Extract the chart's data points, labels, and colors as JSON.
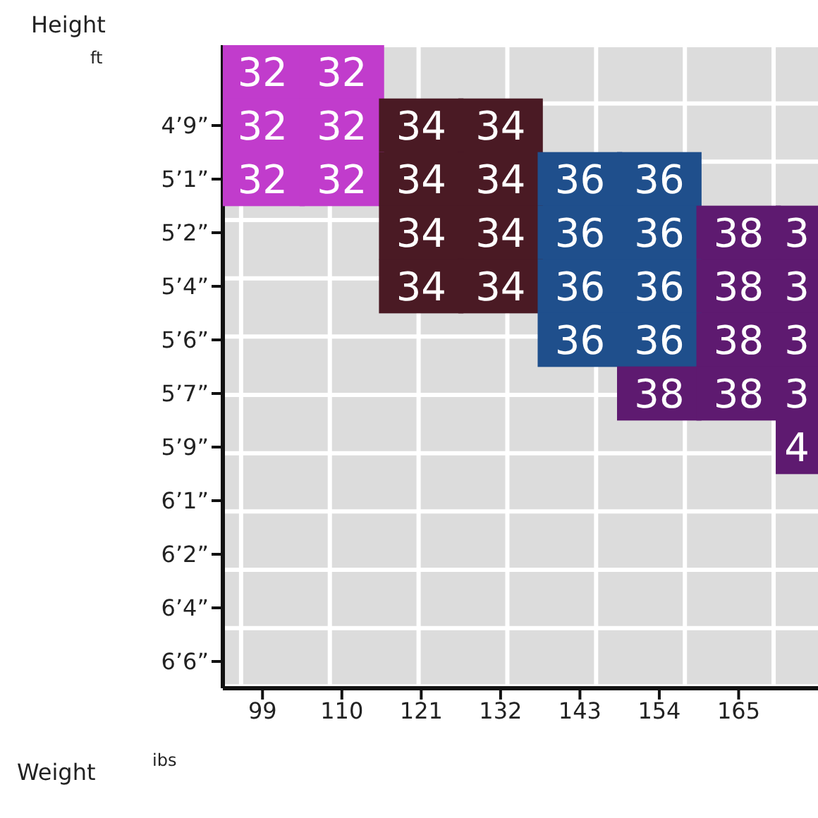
{
  "chart_data": {
    "type": "heatmap",
    "xlabel": "Weight",
    "ylabel": "Height",
    "annotations": [
      "ft",
      "ibs"
    ],
    "categories": [
      "99",
      "110",
      "121",
      "132",
      "143",
      "154",
      "165",
      null
    ],
    "y_categories": [
      null,
      "4’9”",
      "5’1”",
      "5’2”",
      "5’4”",
      "5’6”",
      "5’7”",
      "5’9”",
      "6’1”",
      "6’2”",
      "6’4”",
      "6’6”"
    ],
    "grid": true,
    "cells": [
      [
        32,
        32,
        null,
        null,
        null,
        null,
        null,
        null
      ],
      [
        32,
        32,
        34,
        34,
        null,
        null,
        null,
        null
      ],
      [
        32,
        32,
        34,
        34,
        36,
        36,
        null,
        null
      ],
      [
        null,
        null,
        34,
        34,
        36,
        36,
        38,
        3
      ],
      [
        null,
        null,
        34,
        34,
        36,
        36,
        38,
        3
      ],
      [
        null,
        null,
        null,
        null,
        36,
        36,
        38,
        3
      ],
      [
        null,
        null,
        null,
        null,
        null,
        38,
        38,
        3
      ],
      [
        null,
        null,
        null,
        null,
        null,
        null,
        null,
        4
      ],
      [
        null,
        null,
        null,
        null,
        null,
        null,
        null,
        null
      ],
      [
        null,
        null,
        null,
        null,
        null,
        null,
        null,
        null
      ],
      [
        null,
        null,
        null,
        null,
        null,
        null,
        null,
        null
      ],
      [
        null,
        null,
        null,
        null,
        null,
        null,
        null,
        null
      ]
    ],
    "colors": [
      [
        "#c13ccc",
        "#c13ccc",
        null,
        null,
        null,
        null,
        null,
        null
      ],
      [
        "#c13ccc",
        "#c13ccc",
        "#4a1a24",
        "#4a1a24",
        null,
        null,
        null,
        null
      ],
      [
        "#c13ccc",
        "#c13ccc",
        "#4a1a24",
        "#4a1a24",
        "#1f4f8c",
        "#1f4f8c",
        null,
        null
      ],
      [
        null,
        null,
        "#4a1a24",
        "#4a1a24",
        "#1f4f8c",
        "#1f4f8c",
        "#5e1a70",
        "#5e1a70"
      ],
      [
        null,
        null,
        "#4a1a24",
        "#4a1a24",
        "#1f4f8c",
        "#1f4f8c",
        "#5e1a70",
        "#5e1a70"
      ],
      [
        null,
        null,
        null,
        null,
        "#1f4f8c",
        "#1f4f8c",
        "#5e1a70",
        "#5e1a70"
      ],
      [
        null,
        null,
        null,
        null,
        null,
        "#5e1a70",
        "#5e1a70",
        "#5e1a70"
      ],
      [
        null,
        null,
        null,
        null,
        null,
        null,
        null,
        "#5e1a70"
      ],
      [
        null,
        null,
        null,
        null,
        null,
        null,
        null,
        null
      ],
      [
        null,
        null,
        null,
        null,
        null,
        null,
        null,
        null
      ],
      [
        null,
        null,
        null,
        null,
        null,
        null,
        null,
        null
      ],
      [
        null,
        null,
        null,
        null,
        null,
        null,
        null,
        null
      ]
    ],
    "data_labels": true
  }
}
